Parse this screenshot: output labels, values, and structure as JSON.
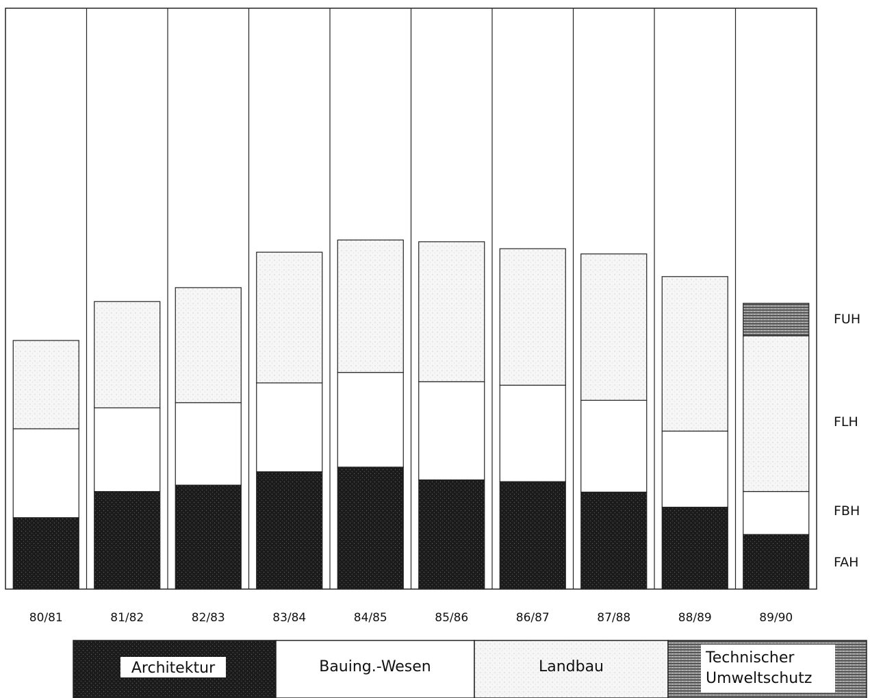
{
  "chart_data": {
    "type": "bar",
    "stacked": true,
    "title": "",
    "xlabel": "",
    "ylabel": "",
    "categories": [
      "80/81",
      "81/82",
      "82/83",
      "83/84",
      "84/85",
      "85/86",
      "86/87",
      "87/88",
      "88/89",
      "89/90"
    ],
    "ylim": [
      0,
      1
    ],
    "series": [
      {
        "name": "Architektur",
        "side_label": "FAH",
        "pattern": "dark-stipple",
        "values": [
          0.123,
          0.168,
          0.179,
          0.202,
          0.21,
          0.188,
          0.185,
          0.167,
          0.141,
          0.094
        ]
      },
      {
        "name": "Bauing.-Wesen",
        "side_label": "FBH",
        "pattern": "white",
        "values": [
          0.153,
          0.144,
          0.142,
          0.153,
          0.163,
          0.169,
          0.166,
          0.158,
          0.131,
          0.074
        ]
      },
      {
        "name": "Landbau",
        "side_label": "FLH",
        "pattern": "light-stipple",
        "values": [
          0.152,
          0.183,
          0.198,
          0.225,
          0.228,
          0.241,
          0.235,
          0.252,
          0.266,
          0.268
        ]
      },
      {
        "name": "Technischer Umweltschutz",
        "side_label": "FUH",
        "pattern": "dense-stipple",
        "values": [
          0,
          0,
          0,
          0,
          0,
          0,
          0,
          0,
          0,
          0.056
        ]
      }
    ],
    "grid": false,
    "legend": "bottom",
    "colors": {
      "dark": "#1b1b1b",
      "light": "#f3f3f3",
      "white": "#ffffff",
      "dense": "#6a6a6a",
      "border": "#222222"
    }
  }
}
